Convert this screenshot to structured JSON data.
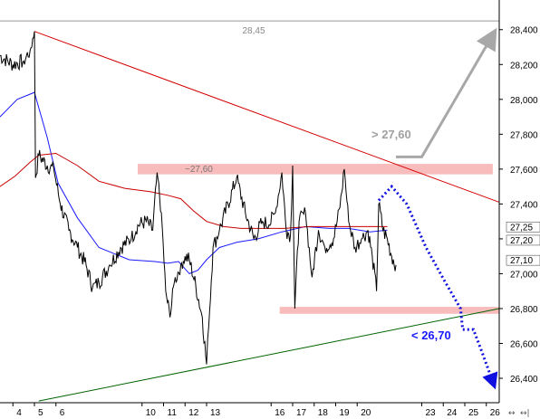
{
  "chart_data": {
    "type": "line",
    "x_ticks": [
      "4",
      "5",
      "6",
      "10",
      "11",
      "12",
      "13",
      "16",
      "17",
      "18",
      "19",
      "20",
      "23",
      "24",
      "25",
      "26"
    ],
    "y_ticks": [
      "28,400",
      "28,200",
      "28,000",
      "27,800",
      "27,600",
      "27,400",
      "27,200",
      "27,000",
      "26,800",
      "26,600",
      "26,400"
    ],
    "y_tick_values": [
      28.4,
      28.2,
      28.0,
      27.8,
      27.6,
      27.4,
      27.2,
      27.0,
      26.8,
      26.6,
      26.4
    ],
    "ylim": [
      26.26,
      28.57
    ],
    "x_range": [
      3.4,
      26.6
    ],
    "right_axis_markers": [
      {
        "label": "27,25",
        "value": 27.25
      },
      {
        "label": "27,20",
        "value": 27.2
      },
      {
        "label": "27,10",
        "value": 27.1
      }
    ],
    "horizontal_line": {
      "label": "28,45",
      "value": 28.45
    },
    "zones": [
      {
        "label": "~27,60",
        "y_low": 27.57,
        "y_high": 27.63,
        "x_start": 9.8,
        "x_end": 26.3
      },
      {
        "y_low": 26.77,
        "y_high": 26.81,
        "x_start": 16.4,
        "x_end": 26.6
      }
    ],
    "trendlines": [
      {
        "name": "resistance",
        "color": "#d40000",
        "points": [
          [
            5.0,
            28.39
          ],
          [
            26.6,
            27.41
          ]
        ]
      },
      {
        "name": "support",
        "color": "#006400",
        "points": [
          [
            5.2,
            26.27
          ],
          [
            26.6,
            26.8
          ]
        ]
      }
    ],
    "moving_averages": [
      {
        "name": "ma-blue",
        "color": "#1a1aff",
        "points": [
          [
            3.4,
            27.9
          ],
          [
            4.2,
            28.0
          ],
          [
            5.0,
            28.04
          ],
          [
            5.6,
            27.78
          ],
          [
            6.1,
            27.52
          ],
          [
            7.0,
            27.32
          ],
          [
            8.0,
            27.15
          ],
          [
            9.4,
            27.08
          ],
          [
            10.6,
            27.07
          ],
          [
            11.2,
            27.06
          ],
          [
            11.7,
            27.07
          ],
          [
            12.2,
            27.0
          ],
          [
            12.6,
            27.02
          ],
          [
            13.0,
            27.08
          ],
          [
            13.6,
            27.15
          ],
          [
            14.4,
            27.18
          ],
          [
            15.4,
            27.2
          ],
          [
            16.5,
            27.24
          ],
          [
            17.6,
            27.27
          ],
          [
            18.7,
            27.26
          ],
          [
            19.6,
            27.26
          ],
          [
            20.6,
            27.24
          ],
          [
            21.4,
            27.25
          ]
        ]
      },
      {
        "name": "ma-red",
        "color": "#c80000",
        "points": [
          [
            3.4,
            27.5
          ],
          [
            4.1,
            27.56
          ],
          [
            4.8,
            27.64
          ],
          [
            5.2,
            27.68
          ],
          [
            6.0,
            27.69
          ],
          [
            7.0,
            27.62
          ],
          [
            8.0,
            27.53
          ],
          [
            9.2,
            27.49
          ],
          [
            10.4,
            27.47
          ],
          [
            11.2,
            27.45
          ],
          [
            11.8,
            27.43
          ],
          [
            12.4,
            27.36
          ],
          [
            13.0,
            27.3
          ],
          [
            13.8,
            27.27
          ],
          [
            14.6,
            27.26
          ],
          [
            15.6,
            27.26
          ],
          [
            16.6,
            27.26
          ],
          [
            17.8,
            27.27
          ],
          [
            18.8,
            27.27
          ],
          [
            19.8,
            27.27
          ],
          [
            20.8,
            27.27
          ],
          [
            21.4,
            27.27
          ]
        ]
      }
    ],
    "price_path": [
      [
        3.4,
        28.25
      ],
      [
        4.0,
        28.2
      ],
      [
        4.5,
        28.22
      ],
      [
        4.8,
        28.28
      ],
      [
        5.0,
        28.39
      ],
      [
        5.05,
        27.55
      ],
      [
        5.2,
        27.68
      ],
      [
        5.6,
        27.62
      ],
      [
        5.9,
        27.6
      ],
      [
        6.2,
        27.4
      ],
      [
        6.6,
        27.25
      ],
      [
        7.0,
        27.15
      ],
      [
        7.4,
        27.05
      ],
      [
        7.7,
        26.92
      ],
      [
        8.0,
        26.95
      ],
      [
        8.5,
        27.05
      ],
      [
        9.0,
        27.15
      ],
      [
        9.5,
        27.2
      ],
      [
        9.8,
        27.28
      ],
      [
        10.2,
        27.3
      ],
      [
        10.5,
        27.25
      ],
      [
        10.7,
        27.58
      ],
      [
        10.9,
        27.35
      ],
      [
        11.1,
        26.9
      ],
      [
        11.3,
        26.75
      ],
      [
        11.5,
        26.95
      ],
      [
        11.8,
        27.05
      ],
      [
        12.0,
        27.1
      ],
      [
        12.2,
        27.08
      ],
      [
        12.5,
        26.93
      ],
      [
        12.8,
        26.75
      ],
      [
        13.0,
        26.48
      ],
      [
        13.1,
        26.7
      ],
      [
        13.3,
        27.15
      ],
      [
        13.6,
        27.25
      ],
      [
        14.0,
        27.4
      ],
      [
        14.4,
        27.55
      ],
      [
        14.8,
        27.35
      ],
      [
        15.2,
        27.2
      ],
      [
        15.6,
        27.3
      ],
      [
        15.9,
        27.28
      ],
      [
        16.2,
        27.35
      ],
      [
        16.5,
        27.58
      ],
      [
        16.7,
        27.25
      ],
      [
        16.9,
        27.22
      ],
      [
        17.0,
        27.62
      ],
      [
        17.1,
        26.8
      ],
      [
        17.3,
        27.3
      ],
      [
        17.6,
        27.35
      ],
      [
        17.9,
        26.98
      ],
      [
        18.2,
        27.25
      ],
      [
        18.5,
        27.15
      ],
      [
        18.9,
        27.2
      ],
      [
        19.2,
        27.38
      ],
      [
        19.4,
        27.6
      ],
      [
        19.6,
        27.3
      ],
      [
        19.9,
        27.15
      ],
      [
        20.2,
        27.2
      ],
      [
        20.5,
        27.25
      ],
      [
        20.7,
        27.1
      ],
      [
        20.9,
        26.9
      ],
      [
        21.0,
        27.4
      ],
      [
        21.2,
        27.25
      ],
      [
        21.4,
        27.2
      ],
      [
        21.6,
        27.1
      ],
      [
        21.8,
        27.05
      ]
    ],
    "annotations": [
      {
        "text": "> 27,60",
        "color": "#a0a0a0"
      },
      {
        "text": "< 26,70",
        "color": "#1a1aff"
      }
    ],
    "forecast_paths": [
      {
        "name": "bullish",
        "color": "#a8a8a8",
        "style": "solid",
        "points": [
          [
            21.8,
            27.67
          ],
          [
            23.0,
            27.67
          ],
          [
            26.3,
            28.37
          ]
        ]
      },
      {
        "name": "bearish",
        "color": "#1010e0",
        "style": "dotted",
        "points": [
          [
            21.0,
            27.42
          ],
          [
            21.6,
            27.5
          ],
          [
            22.3,
            27.4
          ],
          [
            23.2,
            27.15
          ],
          [
            24.1,
            26.95
          ],
          [
            24.8,
            26.8
          ],
          [
            24.9,
            26.68
          ],
          [
            25.4,
            26.68
          ],
          [
            25.8,
            26.55
          ],
          [
            26.3,
            26.38
          ]
        ]
      }
    ],
    "grid": false
  },
  "nav_icons": [
    "arrows-icon",
    "scroll-end-icon"
  ]
}
